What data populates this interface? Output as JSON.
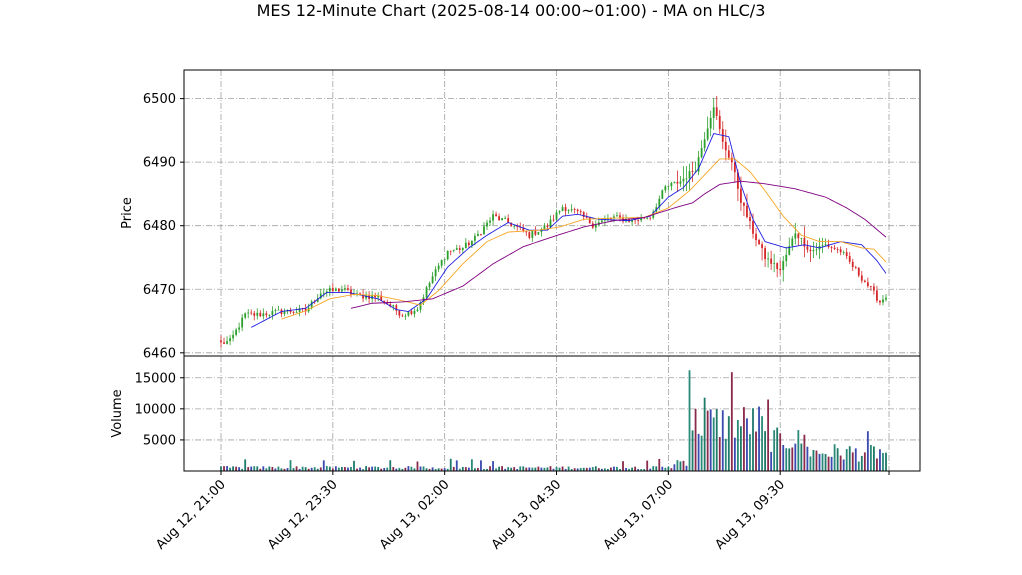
{
  "chart_data": {
    "type": "candlestick",
    "title": "MES 12-Minute Chart (2025-08-14 00:00~01:00) - MA on HLC/3",
    "price_panel": {
      "ylabel": "Price",
      "ylim": [
        6459.5,
        6504.5
      ],
      "yticks": [
        6460,
        6470,
        6480,
        6490,
        6500
      ],
      "candle_colors": {
        "up": "#2ca02c",
        "down": "#d62728"
      },
      "close_anchors": [
        [
          0,
          6461.5
        ],
        [
          3,
          6461.8
        ],
        [
          8,
          6466.0
        ],
        [
          12,
          6466.0
        ],
        [
          20,
          6466.5
        ],
        [
          28,
          6466.6
        ],
        [
          33,
          6469.5
        ],
        [
          40,
          6470.0
        ],
        [
          45,
          6469.0
        ],
        [
          52,
          6468.8
        ],
        [
          60,
          6466.0
        ],
        [
          65,
          6467.0
        ],
        [
          70,
          6472.0
        ],
        [
          75,
          6476.0
        ],
        [
          80,
          6476.5
        ],
        [
          84,
          6478.0
        ],
        [
          90,
          6481.5
        ],
        [
          95,
          6480.5
        ],
        [
          102,
          6478.5
        ],
        [
          108,
          6480.0
        ],
        [
          113,
          6483.0
        ],
        [
          118,
          6482.0
        ],
        [
          123,
          6480.2
        ],
        [
          130,
          6481.3
        ],
        [
          136,
          6480.8
        ],
        [
          142,
          6481.5
        ],
        [
          147,
          6486.0
        ],
        [
          152,
          6487.0
        ],
        [
          157,
          6489.0
        ],
        [
          160,
          6494.0
        ],
        [
          163,
          6499.0
        ],
        [
          166,
          6493.0
        ],
        [
          169,
          6490.0
        ],
        [
          172,
          6484.0
        ],
        [
          176,
          6479.0
        ],
        [
          180,
          6475.0
        ],
        [
          185,
          6473.0
        ],
        [
          190,
          6479.0
        ],
        [
          195,
          6476.0
        ],
        [
          200,
          6477.0
        ],
        [
          205,
          6476.0
        ],
        [
          210,
          6473.0
        ],
        [
          215,
          6470.0
        ],
        [
          218,
          6468.0
        ],
        [
          220,
          6469.0
        ]
      ],
      "moving_averages": [
        {
          "color": "#1f1fe0",
          "start": 10,
          "anchors": [
            [
              10,
              6464.0
            ],
            [
              20,
              6466.5
            ],
            [
              28,
              6467.0
            ],
            [
              35,
              6469.5
            ],
            [
              42,
              6469.5
            ],
            [
              52,
              6468.5
            ],
            [
              58,
              6466.8
            ],
            [
              62,
              6466.5
            ],
            [
              68,
              6468.5
            ],
            [
              75,
              6473.5
            ],
            [
              82,
              6476.5
            ],
            [
              88,
              6478.5
            ],
            [
              95,
              6480.5
            ],
            [
              102,
              6479.3
            ],
            [
              108,
              6479.3
            ],
            [
              113,
              6481.5
            ],
            [
              118,
              6481.8
            ],
            [
              125,
              6481.0
            ],
            [
              135,
              6480.8
            ],
            [
              142,
              6481.5
            ],
            [
              148,
              6484.5
            ],
            [
              153,
              6486.0
            ],
            [
              158,
              6489.0
            ],
            [
              163,
              6494.5
            ],
            [
              168,
              6494.0
            ],
            [
              172,
              6486.5
            ],
            [
              176,
              6481.0
            ],
            [
              180,
              6477.5
            ],
            [
              187,
              6476.5
            ],
            [
              193,
              6477.0
            ],
            [
              198,
              6476.5
            ],
            [
              205,
              6477.5
            ],
            [
              212,
              6477.0
            ],
            [
              217,
              6474.5
            ],
            [
              220,
              6472.5
            ]
          ]
        },
        {
          "color": "#f5a623",
          "start": 20,
          "anchors": [
            [
              20,
              6465.3
            ],
            [
              28,
              6466.6
            ],
            [
              36,
              6468.5
            ],
            [
              44,
              6469.2
            ],
            [
              52,
              6469.0
            ],
            [
              60,
              6468.2
            ],
            [
              66,
              6467.5
            ],
            [
              72,
              6469.8
            ],
            [
              80,
              6474.0
            ],
            [
              88,
              6477.5
            ],
            [
              95,
              6479.0
            ],
            [
              105,
              6479.3
            ],
            [
              112,
              6479.8
            ],
            [
              120,
              6481.0
            ],
            [
              130,
              6481.2
            ],
            [
              140,
              6481.3
            ],
            [
              148,
              6482.8
            ],
            [
              155,
              6485.5
            ],
            [
              160,
              6488.0
            ],
            [
              165,
              6490.5
            ],
            [
              170,
              6490.5
            ],
            [
              175,
              6488.5
            ],
            [
              180,
              6485.5
            ],
            [
              186,
              6481.5
            ],
            [
              192,
              6478.5
            ],
            [
              198,
              6477.5
            ],
            [
              205,
              6477.5
            ],
            [
              212,
              6476.5
            ],
            [
              216,
              6476.3
            ],
            [
              220,
              6474.3
            ]
          ]
        },
        {
          "color": "#800080",
          "start": 43,
          "anchors": [
            [
              43,
              6467.0
            ],
            [
              50,
              6467.8
            ],
            [
              60,
              6468.0
            ],
            [
              70,
              6468.5
            ],
            [
              80,
              6470.5
            ],
            [
              90,
              6474.0
            ],
            [
              100,
              6476.7
            ],
            [
              110,
              6478.3
            ],
            [
              120,
              6479.8
            ],
            [
              130,
              6480.8
            ],
            [
              140,
              6481.3
            ],
            [
              150,
              6482.8
            ],
            [
              156,
              6483.6
            ],
            [
              160,
              6485.0
            ],
            [
              165,
              6486.5
            ],
            [
              172,
              6487.0
            ],
            [
              180,
              6486.6
            ],
            [
              190,
              6485.8
            ],
            [
              200,
              6484.5
            ],
            [
              207,
              6482.8
            ],
            [
              213,
              6481.0
            ],
            [
              220,
              6478.2
            ]
          ]
        }
      ]
    },
    "volume_panel": {
      "ylabel": "Volume",
      "ylim": [
        0,
        18500
      ],
      "yticks": [
        5000,
        10000,
        15000
      ],
      "yticklabels": [
        "5000",
        "10000",
        "15000"
      ]
    },
    "x_axis": {
      "bar_count": 221,
      "tick_indices": [
        0,
        37,
        74,
        111,
        148,
        185,
        221
      ],
      "ticklabels": [
        "Aug 12, 21:00",
        "Aug 12, 23:30",
        "Aug 13, 02:00",
        "Aug 13, 04:30",
        "Aug 13, 07:00",
        "Aug 13, 09:30",
        ""
      ]
    },
    "grid": true
  }
}
